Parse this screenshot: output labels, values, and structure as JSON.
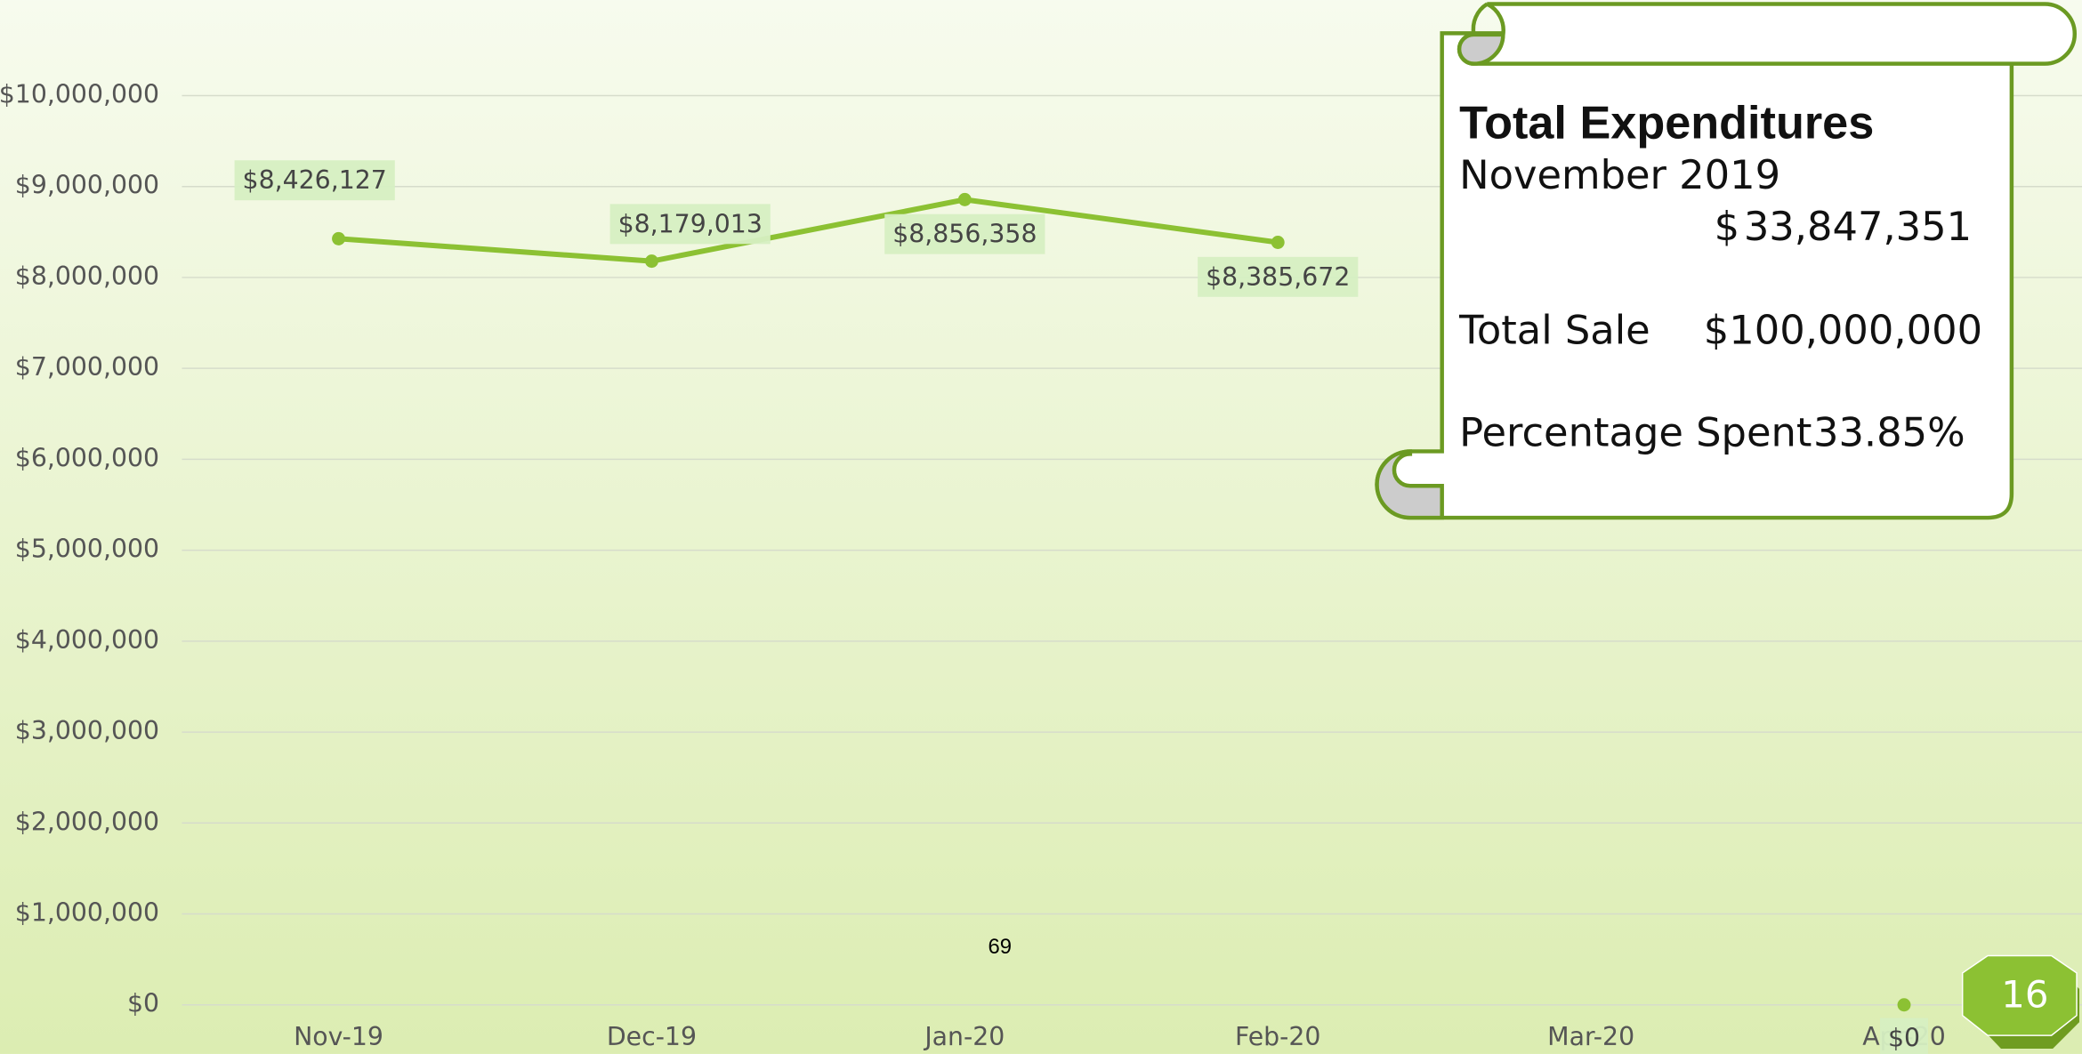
{
  "chart_data": {
    "type": "line",
    "categories": [
      "Nov-19",
      "Dec-19",
      "Jan-20",
      "Feb-20",
      "Mar-20",
      "Apr-20"
    ],
    "series": [
      {
        "color": "#8cc133",
        "values": [
          8426127,
          8179013,
          8856358,
          8385672,
          null,
          0
        ],
        "value_labels": [
          "$8,426,127",
          "$8,179,013",
          "$8,856,358",
          "$8,385,672",
          null,
          "$0"
        ]
      }
    ],
    "ylim": [
      0,
      10000000
    ],
    "yticks": [
      {
        "value": 0,
        "label": "$0"
      },
      {
        "value": 1000000,
        "label": "$1,000,000"
      },
      {
        "value": 2000000,
        "label": "$2,000,000"
      },
      {
        "value": 3000000,
        "label": "$3,000,000"
      },
      {
        "value": 4000000,
        "label": "$4,000,000"
      },
      {
        "value": 5000000,
        "label": "$5,000,000"
      },
      {
        "value": 6000000,
        "label": "$6,000,000"
      },
      {
        "value": 7000000,
        "label": "$7,000,000"
      },
      {
        "value": 8000000,
        "label": "$8,000,000"
      },
      {
        "value": 9000000,
        "label": "$9,000,000"
      },
      {
        "value": 10000000,
        "label": "$10,000,000"
      }
    ],
    "grid": true,
    "annotation": "69"
  },
  "callout": {
    "title": "Total Expenditures",
    "period": "November 2019",
    "currency": "$",
    "total_expenditures": "33,847,351",
    "total_sale_label": "Total Sale",
    "total_sale": "$100,000,000",
    "percentage_label": "Percentage Spent",
    "percentage": "33.85%"
  },
  "slide_number": "16"
}
